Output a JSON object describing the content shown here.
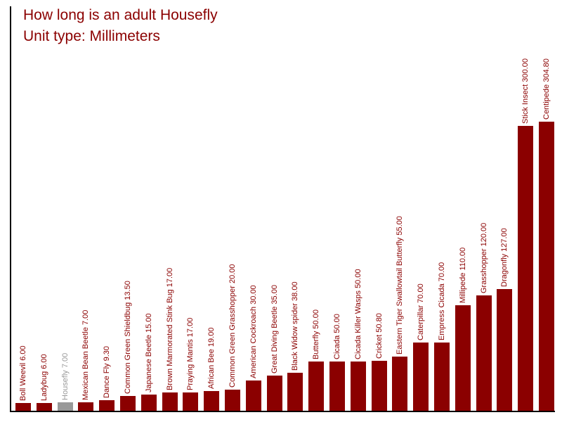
{
  "header": {
    "title": "How long is an adult Housefly",
    "subtitle": "Unit type: Millimeters"
  },
  "colors": {
    "bar": "#8B0000",
    "bar_highlight": "#999999",
    "title_text": "#8B0000",
    "label_text": "#8B0000",
    "label_text_highlight": "#999999",
    "axis": "#000000",
    "background": "#FFFFFF"
  },
  "chart_data": {
    "type": "bar",
    "title": "How long is an adult Housefly",
    "subtitle": "Unit type: Millimeters",
    "unit": "Millimeters",
    "xlabel": "",
    "ylabel": "",
    "ylim": [
      0,
      430
    ],
    "grid": false,
    "legend": "none",
    "bar_label_format": "{category} {value}",
    "value_decimals": 2,
    "highlight_category": "Housefly",
    "categories": [
      "Boll Weevil",
      "Ladybug",
      "Housefly",
      "Mexican Bean Beetle",
      "Dance Fly",
      "Common Green Shieldbug",
      "Japanese Beetle",
      "Brown Marmorated Stink Bug",
      "Praying Mantis",
      "African Bee",
      "Common Green Grasshopper",
      "American Cockroach",
      "Great Diving Beetle",
      "Black Widow spider",
      "Butterfly",
      "Cicada",
      "Cicada Killer Wasps",
      "Cricket",
      "Eastern Tiger Swallowtail Butterfly",
      "Caterpillar",
      "Empress Cicada",
      "Millipede",
      "Grasshopper",
      "Dragonfly",
      "Stick Insect",
      "Centipede"
    ],
    "values": [
      6,
      6,
      7,
      7,
      9.3,
      13.5,
      15,
      17,
      17,
      19,
      20,
      30,
      35,
      38,
      50,
      50,
      50,
      50.8,
      55,
      70,
      70,
      110,
      120,
      127,
      300,
      304.8
    ]
  }
}
